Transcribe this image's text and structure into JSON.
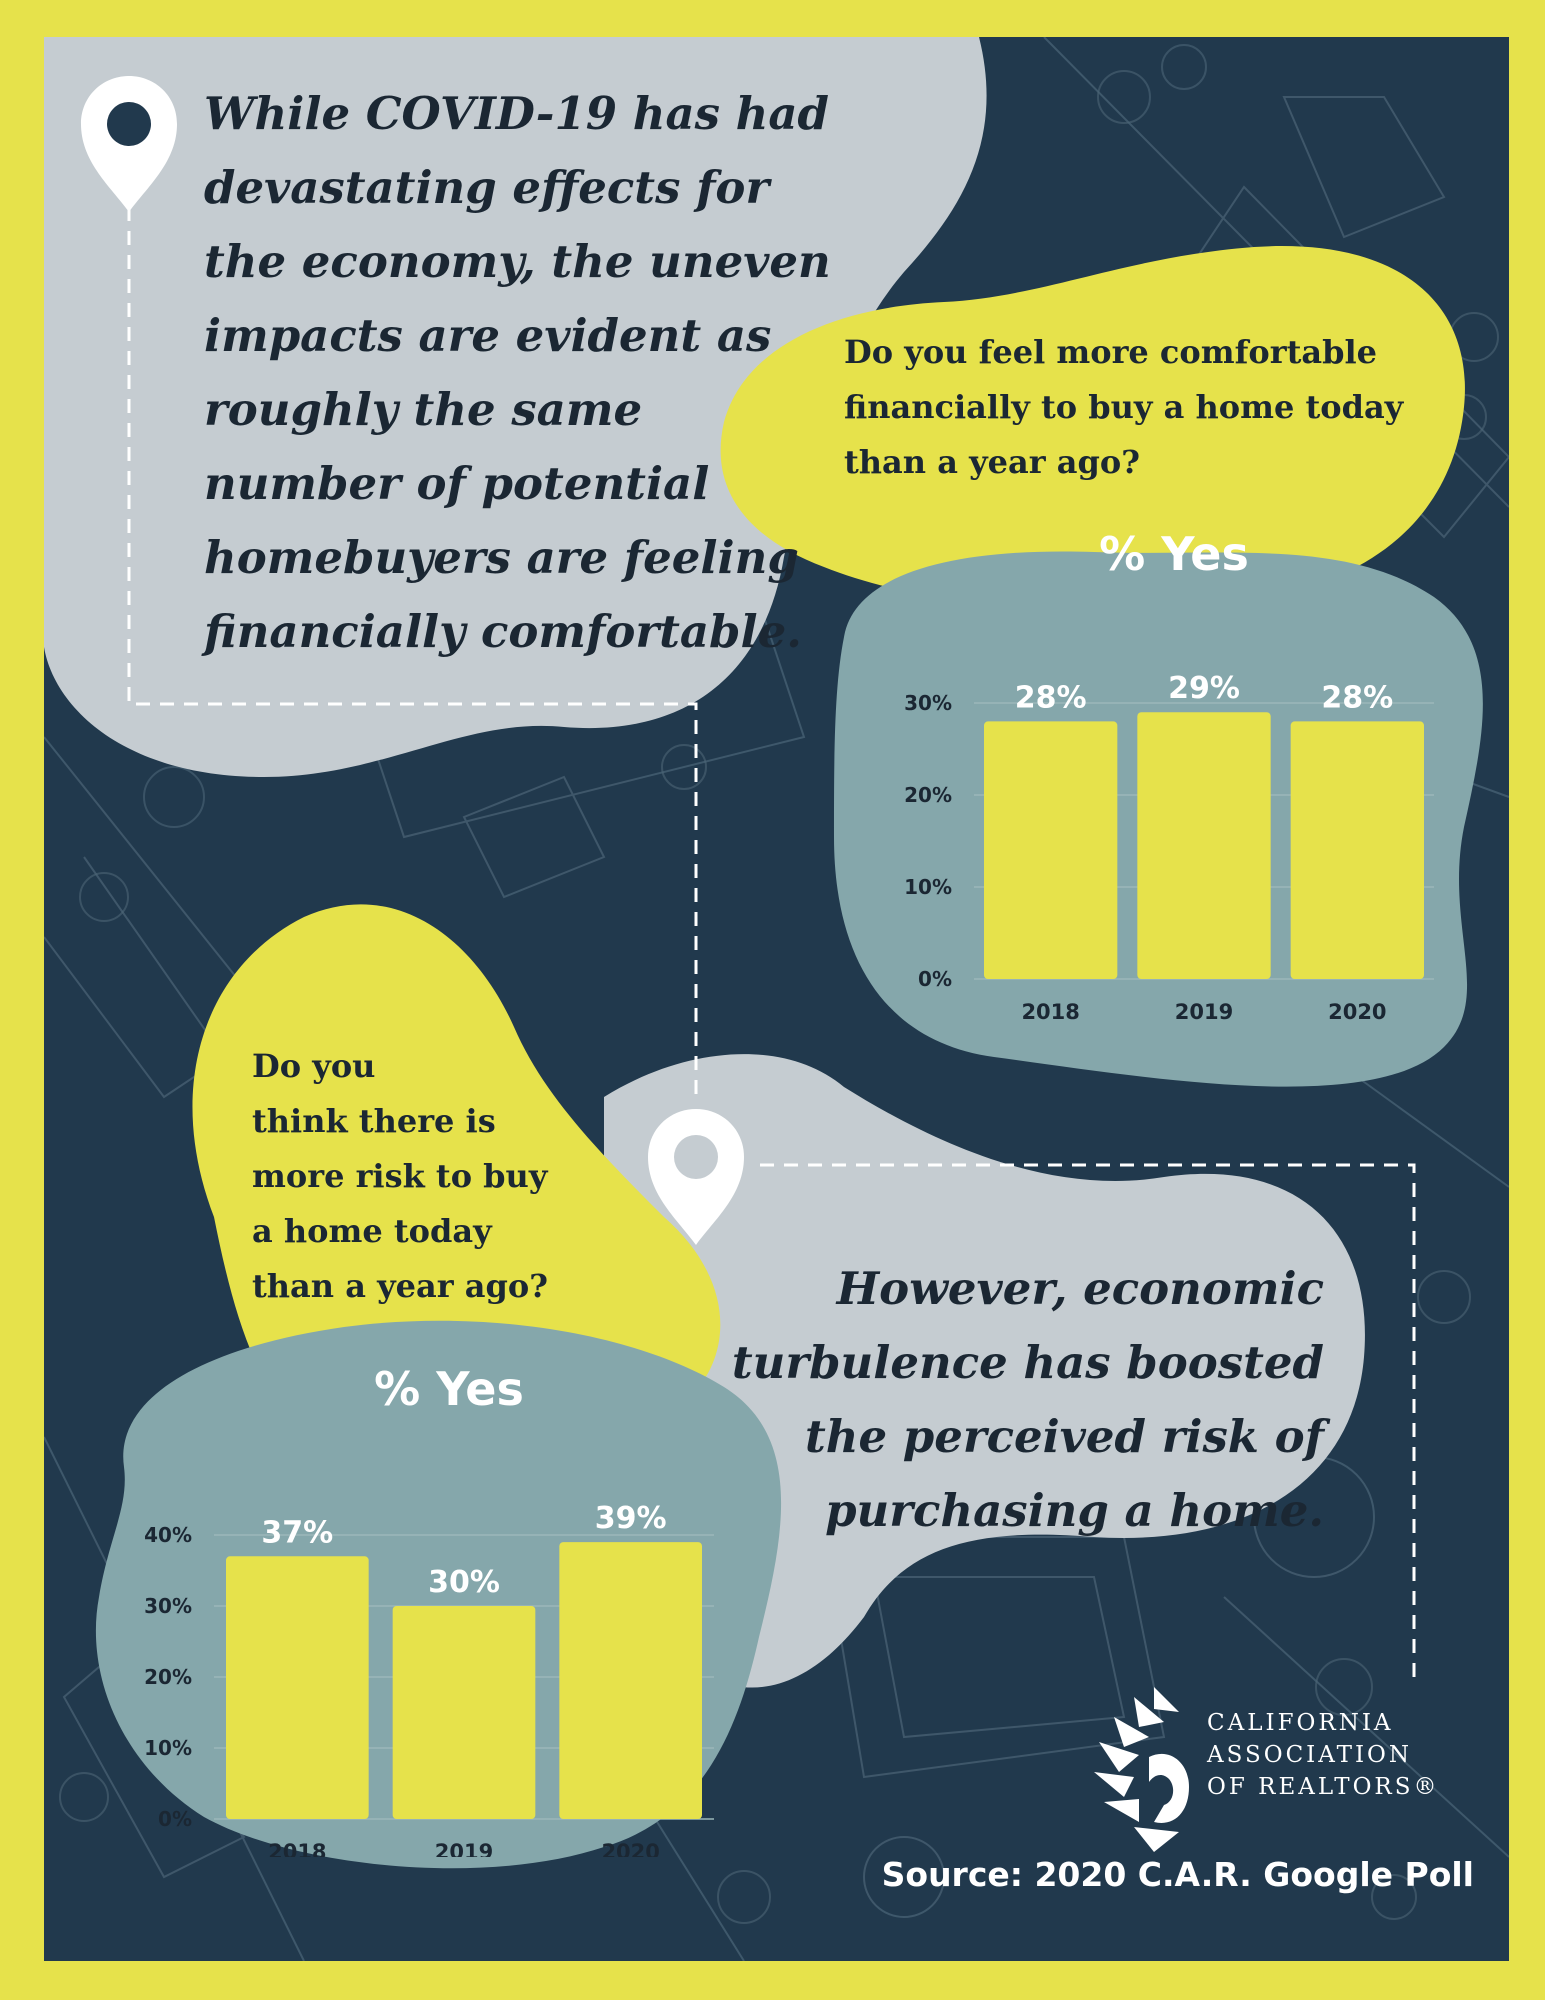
{
  "intro": {
    "lines": [
      "While COVID-19 has had",
      "devastating effects for",
      "the economy, the uneven",
      "impacts are evident as",
      "roughly the same",
      "number of potential",
      "homebuyers are feeling",
      "financially comfortable."
    ]
  },
  "question1": {
    "lines": [
      "Do you feel more comfortable",
      "financially to buy a home today",
      "than a year ago?"
    ]
  },
  "question2": {
    "lines": [
      "Do you",
      "think there is",
      "more risk to buy",
      "a home today",
      "than a year ago?"
    ]
  },
  "conclusion": {
    "lines": [
      "However, economic",
      "turbulence has boosted",
      "the perceived risk of",
      "purchasing a home."
    ]
  },
  "source": "Source: 2020 C.A.R. Google Poll",
  "logo": {
    "lines": [
      "CALIFORNIA",
      "ASSOCIATION",
      "OF REALTORS®"
    ]
  },
  "colors": {
    "frame": "#e6e24b",
    "background": "#21394d",
    "blob_grey": "#c5ccd1",
    "blob_yellow": "#e6e24b",
    "chart_panel": "#85a7ab",
    "bar": "#e6e24b",
    "text_dark": "#1b2733",
    "text_light": "#ffffff"
  },
  "icons": [
    "map-pin-icon",
    "map-pin-icon",
    "car-logo-icon"
  ],
  "chart_data": [
    {
      "type": "bar",
      "title": "% Yes",
      "categories": [
        "2018",
        "2019",
        "2020"
      ],
      "values": [
        28,
        29,
        28
      ],
      "value_labels": [
        "28%",
        "29%",
        "28%"
      ],
      "yticks": [
        "0%",
        "10%",
        "20%",
        "30%"
      ],
      "ylim": [
        0,
        30
      ],
      "grid": true
    },
    {
      "type": "bar",
      "title": "% Yes",
      "categories": [
        "2018",
        "2019",
        "2020"
      ],
      "values": [
        37,
        30,
        39
      ],
      "value_labels": [
        "37%",
        "30%",
        "39%"
      ],
      "yticks": [
        "0%",
        "10%",
        "20%",
        "30%",
        "40%"
      ],
      "ylim": [
        0,
        40
      ],
      "grid": true
    }
  ]
}
